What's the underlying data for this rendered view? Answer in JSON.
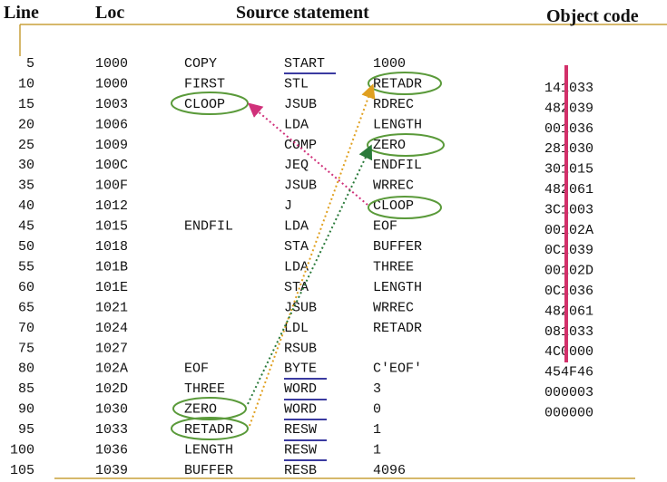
{
  "header": {
    "line": "Line",
    "loc": "Loc",
    "source": "Source statement",
    "object": "Object code"
  },
  "rows": [
    {
      "line": "5",
      "loc": "1000",
      "label": "COPY",
      "opcode": "START",
      "operand": "1000"
    },
    {
      "line": "10",
      "loc": "1000",
      "label": "FIRST",
      "opcode": "STL",
      "operand": "RETADR",
      "object": "141033"
    },
    {
      "line": "15",
      "loc": "1003",
      "label": "CLOOP",
      "opcode": "JSUB",
      "operand": "RDREC",
      "object": "482039"
    },
    {
      "line": "20",
      "loc": "1006",
      "opcode": "LDA",
      "operand": "LENGTH",
      "object": "001036"
    },
    {
      "line": "25",
      "loc": "1009",
      "opcode": "COMP",
      "operand": "ZERO",
      "object": "281030"
    },
    {
      "line": "30",
      "loc": "100C",
      "opcode": "JEQ",
      "operand": "ENDFIL",
      "object": "301015"
    },
    {
      "line": "35",
      "loc": "100F",
      "opcode": "JSUB",
      "operand": "WRREC",
      "object": "482061"
    },
    {
      "line": "40",
      "loc": "1012",
      "opcode": "J",
      "operand": "CLOOP",
      "object": "3C1003"
    },
    {
      "line": "45",
      "loc": "1015",
      "label": "ENDFIL",
      "opcode": "LDA",
      "operand": "EOF",
      "object": "00102A"
    },
    {
      "line": "50",
      "loc": "1018",
      "opcode": "STA",
      "operand": "BUFFER",
      "object": "0C1039"
    },
    {
      "line": "55",
      "loc": "101B",
      "opcode": "LDA",
      "operand": "THREE",
      "object": "00102D"
    },
    {
      "line": "60",
      "loc": "101E",
      "opcode": "STA",
      "operand": "LENGTH",
      "object": "0C1036"
    },
    {
      "line": "65",
      "loc": "1021",
      "opcode": "JSUB",
      "operand": "WRREC",
      "object": "482061"
    },
    {
      "line": "70",
      "loc": "1024",
      "opcode": "LDL",
      "operand": "RETADR",
      "object": "081033"
    },
    {
      "line": "75",
      "loc": "1027",
      "opcode": "RSUB",
      "object": "4C0000"
    },
    {
      "line": "80",
      "loc": "102A",
      "label": "EOF",
      "opcode": "BYTE",
      "operand": "C'EOF'",
      "object": "454F46"
    },
    {
      "line": "85",
      "loc": "102D",
      "label": "THREE",
      "opcode": "WORD",
      "operand": "3",
      "object": "000003"
    },
    {
      "line": "90",
      "loc": "1030",
      "label": "ZERO",
      "opcode": "WORD",
      "operand": "0",
      "object": "000000"
    },
    {
      "line": "95",
      "loc": "1033",
      "label": "RETADR",
      "opcode": "RESW",
      "operand": "1"
    },
    {
      "line": "100",
      "loc": "1036",
      "label": "LENGTH",
      "opcode": "RESW",
      "operand": "1"
    },
    {
      "line": "105",
      "loc": "1039",
      "label": "BUFFER",
      "opcode": "RESB",
      "operand": "4096"
    }
  ]
}
